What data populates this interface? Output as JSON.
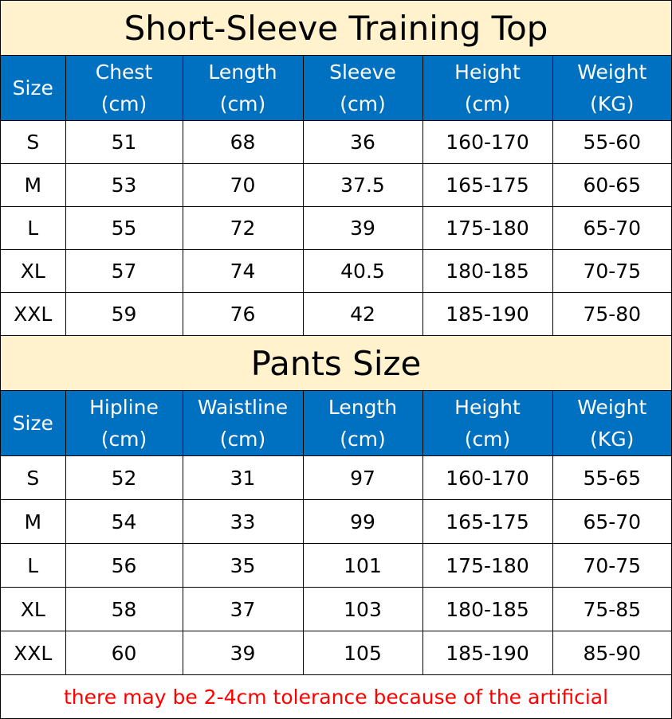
{
  "top": {
    "title": "Short-Sleeve Training Top",
    "headers": [
      [
        "Size",
        ""
      ],
      [
        "Chest",
        "(cm)"
      ],
      [
        "Length",
        "(cm)"
      ],
      [
        "Sleeve",
        "(cm)"
      ],
      [
        "Height",
        "(cm)"
      ],
      [
        "Weight",
        "(KG)"
      ]
    ],
    "rows": [
      [
        "S",
        "51",
        "68",
        "36",
        "160-170",
        "55-60"
      ],
      [
        "M",
        "53",
        "70",
        "37.5",
        "165-175",
        "60-65"
      ],
      [
        "L",
        "55",
        "72",
        "39",
        "175-180",
        "65-70"
      ],
      [
        "XL",
        "57",
        "74",
        "40.5",
        "180-185",
        "70-75"
      ],
      [
        "XXL",
        "59",
        "76",
        "42",
        "185-190",
        "75-80"
      ]
    ]
  },
  "pants": {
    "title": "Pants Size",
    "headers": [
      [
        "Size",
        ""
      ],
      [
        "Hipline",
        "(cm)"
      ],
      [
        "Waistline",
        "(cm)"
      ],
      [
        "Length",
        "(cm)"
      ],
      [
        "Height",
        "(cm)"
      ],
      [
        "Weight",
        "(KG)"
      ]
    ],
    "rows": [
      [
        "S",
        "52",
        "31",
        "97",
        "160-170",
        "55-65"
      ],
      [
        "M",
        "54",
        "33",
        "99",
        "165-175",
        "65-70"
      ],
      [
        "L",
        "56",
        "35",
        "101",
        "175-180",
        "70-75"
      ],
      [
        "XL",
        "58",
        "37",
        "103",
        "180-185",
        "75-85"
      ],
      [
        "XXL",
        "60",
        "39",
        "105",
        "185-190",
        "85-90"
      ]
    ]
  },
  "footer_note": "there may be 2-4cm tolerance because of the artificial",
  "colors": {
    "title_bg": "#fff2cc",
    "header_bg": "#0070c0",
    "note": "#ff0000"
  }
}
